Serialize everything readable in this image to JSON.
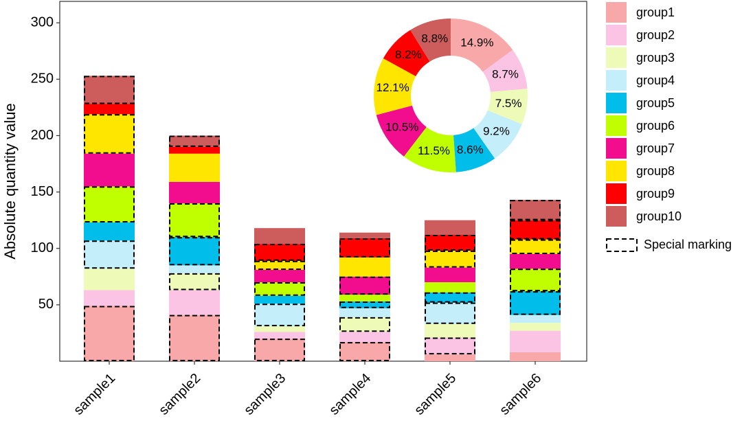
{
  "chart_data": [
    {
      "type": "stacked_bar",
      "y_label": "Absolute quantity value",
      "categories": [
        "sample1",
        "sample2",
        "sample3",
        "sample4",
        "sample5",
        "sample6"
      ],
      "ylim": [
        0,
        319
      ],
      "yticks": [
        50,
        100,
        150,
        200,
        250,
        300
      ],
      "special_label": "Special marking",
      "series": [
        {
          "name": "group1",
          "color": "#f8a8a8",
          "values": [
            49,
            41,
            20,
            17,
            6,
            8
          ],
          "special": [
            true,
            true,
            true,
            true,
            false,
            false
          ]
        },
        {
          "name": "group2",
          "color": "#fbc4e4",
          "values": [
            14,
            22,
            6,
            9,
            15,
            19
          ],
          "special": [
            false,
            false,
            false,
            false,
            true,
            false
          ]
        },
        {
          "name": "group3",
          "color": "#eefbb8",
          "values": [
            19,
            15,
            5,
            13,
            12,
            7
          ],
          "special": [
            false,
            true,
            false,
            true,
            false,
            false
          ]
        },
        {
          "name": "group4",
          "color": "#c4eefa",
          "values": [
            25,
            7,
            20,
            8,
            19,
            7
          ],
          "special": [
            true,
            false,
            true,
            false,
            true,
            false
          ]
        },
        {
          "name": "group5",
          "color": "#00bde9",
          "values": [
            16,
            25,
            7,
            6,
            9,
            21
          ],
          "special": [
            false,
            true,
            false,
            true,
            true,
            true
          ]
        },
        {
          "name": "group6",
          "color": "#c0ff00",
          "values": [
            32,
            30,
            12,
            6,
            9,
            20
          ],
          "special": [
            true,
            true,
            true,
            false,
            false,
            true
          ]
        },
        {
          "name": "group7",
          "color": "#f20c8e",
          "values": [
            29,
            19,
            11,
            16,
            13,
            13
          ],
          "special": [
            false,
            false,
            false,
            true,
            false,
            false
          ]
        },
        {
          "name": "group8",
          "color": "#ffe600",
          "values": [
            35,
            25,
            8,
            17,
            15,
            13
          ],
          "special": [
            true,
            false,
            true,
            false,
            true,
            true
          ]
        },
        {
          "name": "group9",
          "color": "#ff0000",
          "values": [
            9,
            6,
            15,
            17,
            14,
            17
          ],
          "special": [
            false,
            false,
            true,
            true,
            true,
            true
          ]
        },
        {
          "name": "group10",
          "color": "#cd5c5c",
          "values": [
            25,
            10,
            14,
            5,
            13,
            18
          ],
          "special": [
            true,
            true,
            false,
            false,
            false,
            true
          ]
        }
      ]
    },
    {
      "type": "donut",
      "values": [
        14.9,
        8.7,
        7.5,
        9.2,
        8.6,
        11.5,
        10.5,
        12.1,
        8.2,
        8.8
      ],
      "value_labels": [
        "14.9%",
        "8.7%",
        "7.5%",
        "9.2%",
        "8.6%",
        "11.5%",
        "10.5%",
        "12.1%",
        "8.2%",
        "8.8%"
      ]
    }
  ]
}
